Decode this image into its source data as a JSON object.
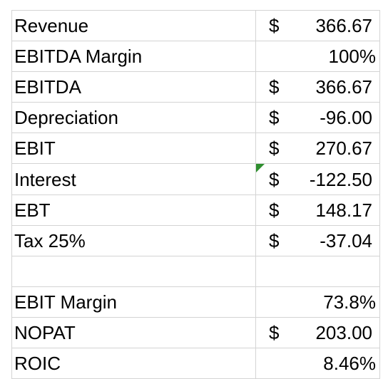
{
  "sheet": {
    "rows": [
      {
        "label": "Revenue",
        "currency": "$",
        "value": "366.67"
      },
      {
        "label": "EBITDA Margin",
        "currency": "",
        "value": "100%"
      },
      {
        "label": "EBITDA",
        "currency": "$",
        "value": "366.67"
      },
      {
        "label": "Depreciation",
        "currency": "$",
        "value": "-96.00"
      },
      {
        "label": "EBIT",
        "currency": "$",
        "value": "270.67"
      },
      {
        "label": "Interest",
        "currency": "$",
        "value": "-122.50"
      },
      {
        "label": "EBT",
        "currency": "$",
        "value": "148.17"
      },
      {
        "label": "Tax 25%",
        "currency": "$",
        "value": "-37.04"
      },
      {
        "label": "",
        "currency": "",
        "value": ""
      },
      {
        "label": "EBIT Margin",
        "currency": "",
        "value": "73.8%"
      },
      {
        "label": "NOPAT",
        "currency": "$",
        "value": "203.00"
      },
      {
        "label": "ROIC",
        "currency": "",
        "value": "8.46%"
      }
    ],
    "comment_indicator_color": "#2f8f2f",
    "gridline_color": "#d4d4d4"
  }
}
